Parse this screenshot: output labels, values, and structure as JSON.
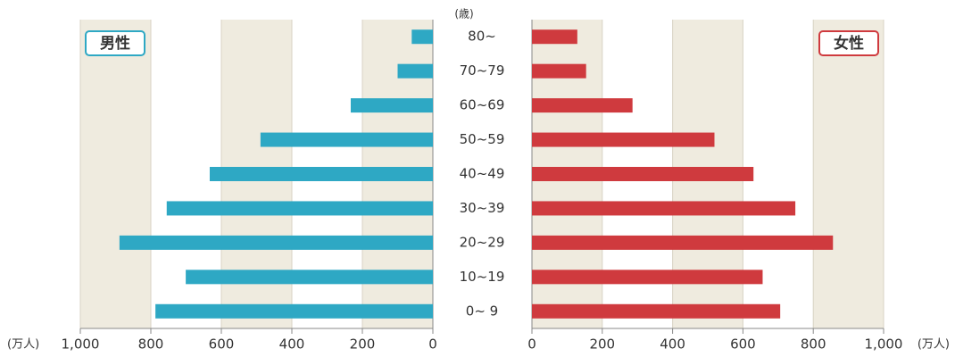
{
  "chart_data": {
    "type": "bar",
    "category_label": "(歳)",
    "value_unit": "(万人)",
    "categories": [
      "80~",
      "70~79",
      "60~69",
      "50~59",
      "40~49",
      "30~39",
      "20~29",
      "10~19",
      "0~ 9"
    ],
    "series": [
      {
        "name": "男性",
        "color": "#2ea8c4",
        "values": [
          60,
          100,
          233,
          489,
          633,
          755,
          889,
          701,
          787
        ]
      },
      {
        "name": "女性",
        "color": "#cf3a3e",
        "values": [
          129,
          154,
          286,
          519,
          630,
          749,
          856,
          656,
          706
        ]
      }
    ],
    "xlim": [
      0,
      1000
    ],
    "xticks": [
      0,
      200,
      400,
      600,
      800,
      {
        "value": 1000,
        "label": "1,000"
      }
    ]
  }
}
